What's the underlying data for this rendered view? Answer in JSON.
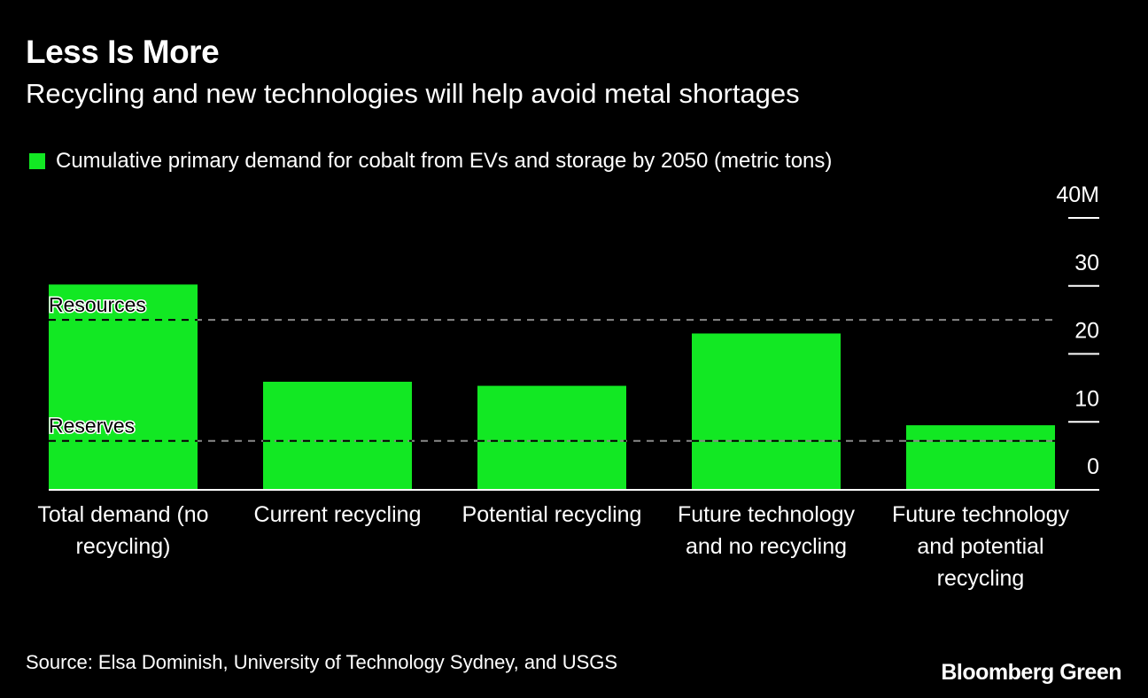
{
  "title": "Less Is More",
  "subtitle": "Recycling and new technologies will help avoid metal shortages",
  "source": "Source: Elsa Dominish, University of Technology Sydney, and USGS",
  "brand": "Bloomberg Green",
  "chart_data": {
    "type": "bar",
    "title": "Less Is More",
    "subtitle": "Recycling and new technologies will help avoid metal shortages",
    "categories": [
      "Total demand (no recycling)",
      "Current recycling",
      "Potential recycling",
      "Future technology and no recycling",
      "Future technology and potential recycling"
    ],
    "series": [
      {
        "name": "Cumulative primary demand for cobalt from EVs and storage by 2050 (metric tons)",
        "color": "#12e823",
        "values": [
          30.2,
          15.9,
          15.3,
          23.0,
          9.5
        ]
      }
    ],
    "unit": "M",
    "ylim": [
      0,
      40
    ],
    "yticks": [
      0,
      10,
      20,
      30,
      40
    ],
    "ytick_labels": [
      "0",
      "10",
      "20",
      "30",
      "40M"
    ],
    "y_axis_side": "right",
    "grid": false,
    "legend_position": "top-left",
    "reference_lines": [
      {
        "label": "Resources",
        "value": 25.0
      },
      {
        "label": "Reserves",
        "value": 7.2
      }
    ]
  }
}
